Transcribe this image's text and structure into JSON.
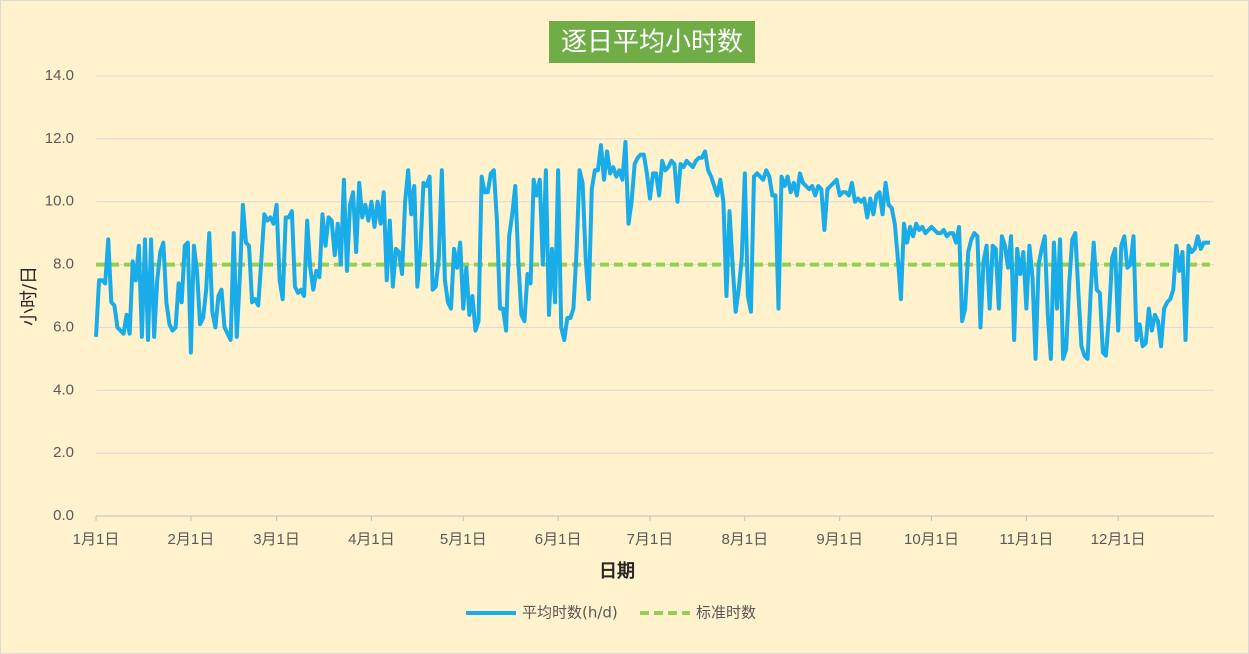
{
  "chart_data": {
    "type": "line",
    "title": "逐日平均小时数",
    "xlabel": "日期",
    "ylabel": "小时/日",
    "x": [
      0,
      1,
      2,
      3,
      4,
      5,
      6,
      7,
      8,
      9,
      10,
      11,
      12,
      13,
      14,
      15,
      16,
      17,
      18,
      19,
      20,
      21,
      22,
      23,
      24,
      25,
      26,
      27,
      28,
      29,
      30,
      31,
      32,
      33,
      34,
      35,
      36,
      37,
      38,
      39,
      40,
      41,
      42,
      43,
      44,
      45,
      46,
      47,
      48,
      49,
      50,
      51,
      52,
      53,
      54,
      55,
      56,
      57,
      58,
      59,
      60,
      61,
      62,
      63,
      64,
      65,
      66,
      67,
      68,
      69,
      70,
      71,
      72,
      73,
      74,
      75,
      76,
      77,
      78,
      79,
      80,
      81,
      82,
      83,
      84,
      85,
      86,
      87,
      88,
      89,
      90,
      91,
      92,
      93,
      94,
      95,
      96,
      97,
      98,
      99,
      100,
      101,
      102,
      103,
      104,
      105,
      106,
      107,
      108,
      109,
      110,
      111,
      112,
      113,
      114,
      115,
      116,
      117,
      118,
      119,
      120,
      121,
      122,
      123,
      124,
      125,
      126,
      127,
      128,
      129,
      130,
      131,
      132,
      133,
      134,
      135,
      136,
      137,
      138,
      139,
      140,
      141,
      142,
      143,
      144,
      145,
      146,
      147,
      148,
      149,
      150,
      151,
      152,
      153,
      154,
      155,
      156,
      157,
      158,
      159,
      160,
      161,
      162,
      163,
      164,
      165,
      166,
      167,
      168,
      169,
      170,
      171,
      172,
      173,
      174,
      175,
      176,
      177,
      178,
      179,
      180,
      181,
      182,
      183,
      184,
      185,
      186,
      187,
      188,
      189,
      190,
      191,
      192,
      193,
      194,
      195,
      196,
      197,
      198,
      199,
      200,
      201,
      202,
      203,
      204,
      205,
      206,
      207,
      208,
      209,
      210,
      211,
      212,
      213,
      214,
      215,
      216,
      217,
      218,
      219,
      220,
      221,
      222,
      223,
      224,
      225,
      226,
      227,
      228,
      229,
      230,
      231,
      232,
      233,
      234,
      235,
      236,
      237,
      238,
      239,
      240,
      241,
      242,
      243,
      244,
      245,
      246,
      247,
      248,
      249,
      250,
      251,
      252,
      253,
      254,
      255,
      256,
      257,
      258,
      259,
      260,
      261,
      262,
      263,
      264,
      265,
      266,
      267,
      268,
      269,
      270,
      271,
      272,
      273,
      274,
      275,
      276,
      277,
      278,
      279,
      280,
      281,
      282,
      283,
      284,
      285,
      286,
      287,
      288,
      289,
      290,
      291,
      292,
      293,
      294,
      295,
      296,
      297,
      298,
      299,
      300,
      301,
      302,
      303,
      304,
      305,
      306,
      307,
      308,
      309,
      310,
      311,
      312,
      313,
      314,
      315,
      316,
      317,
      318,
      319,
      320,
      321,
      322,
      323,
      324,
      325,
      326,
      327,
      328,
      329,
      330,
      331,
      332,
      333,
      334,
      335,
      336,
      337,
      338,
      339,
      340,
      341,
      342,
      343,
      344,
      345,
      346,
      347,
      348,
      349,
      350,
      351,
      352,
      353,
      354,
      355,
      356,
      357,
      358,
      359,
      360,
      361,
      362,
      363,
      364
    ],
    "series": [
      {
        "name": "平均时数(h/d)",
        "color": "#1AACE8",
        "values": [
          5.7,
          7.5,
          7.5,
          7.4,
          8.8,
          6.8,
          6.7,
          6.0,
          5.9,
          5.8,
          6.4,
          5.8,
          8.1,
          7.5,
          8.6,
          5.7,
          8.8,
          5.6,
          8.8,
          5.7,
          7.5,
          8.4,
          8.7,
          6.8,
          6.1,
          5.9,
          6.0,
          7.4,
          6.8,
          8.6,
          8.7,
          5.2,
          8.6,
          7.8,
          6.1,
          6.3,
          7.2,
          9.0,
          6.5,
          6.0,
          7.0,
          7.2,
          6.0,
          5.8,
          5.6,
          9.0,
          5.7,
          7.6,
          9.9,
          8.7,
          8.6,
          6.8,
          6.9,
          6.7,
          8.1,
          9.6,
          9.4,
          9.5,
          9.3,
          9.9,
          7.5,
          6.9,
          9.5,
          9.5,
          9.7,
          7.3,
          7.1,
          7.2,
          7.0,
          9.4,
          7.9,
          7.2,
          7.8,
          7.6,
          9.6,
          8.6,
          9.5,
          9.4,
          8.3,
          9.3,
          8.0,
          10.7,
          7.8,
          9.9,
          10.3,
          8.4,
          10.6,
          9.5,
          9.9,
          9.4,
          10.0,
          9.2,
          10.0,
          9.3,
          10.3,
          7.5,
          9.4,
          7.3,
          8.5,
          8.4,
          7.7,
          10.0,
          11.0,
          9.6,
          10.5,
          7.3,
          8.5,
          10.6,
          10.5,
          10.8,
          7.2,
          7.3,
          8.2,
          11.0,
          7.5,
          6.8,
          6.6,
          8.5,
          7.9,
          8.7,
          6.6,
          7.9,
          6.4,
          7.0,
          5.9,
          6.2,
          10.8,
          10.3,
          10.3,
          10.9,
          11.0,
          9.4,
          6.6,
          6.6,
          5.9,
          8.9,
          9.6,
          10.5,
          8.1,
          6.4,
          6.2,
          7.7,
          7.4,
          10.7,
          10.2,
          10.7,
          8.0,
          11.0,
          6.4,
          8.5,
          6.8,
          11.0,
          6.0,
          5.6,
          6.3,
          6.3,
          6.6,
          8.4,
          11.0,
          10.6,
          8.2,
          6.9,
          10.4,
          11.0,
          11.0,
          11.8,
          10.7,
          11.6,
          10.9,
          11.1,
          10.8,
          11.0,
          10.7,
          11.9,
          9.3,
          10.0,
          11.2,
          11.4,
          11.5,
          11.5,
          10.9,
          10.1,
          10.9,
          10.9,
          10.2,
          11.3,
          11.0,
          11.1,
          11.3,
          11.2,
          10.0,
          11.2,
          11.1,
          11.3,
          11.2,
          11.1,
          11.3,
          11.4,
          11.4,
          11.6,
          11.0,
          10.8,
          10.5,
          10.2,
          10.7,
          10.0,
          7.0,
          9.7,
          8.0,
          6.5,
          7.2,
          8.2,
          10.9,
          7.0,
          6.5,
          10.8,
          10.9,
          10.8,
          10.7,
          11.0,
          10.8,
          10.2,
          10.2,
          6.6,
          10.8,
          10.5,
          10.8,
          10.3,
          10.6,
          10.2,
          10.9,
          10.6,
          10.5,
          10.4,
          10.5,
          10.2,
          10.5,
          10.4,
          9.1,
          10.4,
          10.5,
          10.6,
          10.7,
          10.2,
          10.3,
          10.3,
          10.2,
          10.6,
          10.0,
          10.1,
          10.0,
          10.1,
          9.5,
          10.1,
          9.6,
          10.2,
          10.3,
          9.6,
          10.6,
          9.9,
          9.8,
          9.3,
          8.2,
          6.9,
          9.3,
          8.7,
          9.2,
          8.9,
          9.3,
          9.1,
          9.2,
          9.0,
          9.1,
          9.2,
          9.1,
          9.0,
          9.0,
          9.1,
          8.9,
          9.0,
          9.0,
          8.7,
          9.2,
          6.2,
          6.6,
          8.4,
          8.8,
          9.0,
          8.9,
          6.0,
          8.1,
          8.6,
          6.6,
          8.6,
          8.5,
          6.6,
          8.9,
          8.6,
          7.9,
          8.9,
          5.6,
          8.5,
          7.7,
          8.4,
          6.6,
          8.6,
          7.6,
          5.0,
          8.0,
          8.5,
          8.9,
          6.4,
          5.0,
          8.7,
          6.6,
          8.8,
          5.0,
          5.3,
          7.4,
          8.8,
          9.0,
          7.1,
          5.4,
          5.1,
          5.0,
          7.1,
          8.7,
          7.2,
          7.1,
          5.2,
          5.1,
          6.4,
          8.2,
          8.5,
          5.9,
          8.6,
          8.9,
          7.9,
          8.0,
          8.9,
          5.6,
          6.1,
          5.4,
          5.5,
          6.6,
          5.9,
          6.4,
          6.2,
          5.4,
          6.6,
          6.8,
          6.9,
          7.2,
          8.6,
          7.8,
          8.4,
          5.6,
          8.6,
          8.4,
          8.5,
          8.9,
          8.5,
          8.7,
          8.7,
          8.7
        ]
      }
    ],
    "reference": {
      "name": "标准时数",
      "color": "#92D050",
      "value": 8
    },
    "xlim": [
      0,
      364
    ],
    "xticks": [
      {
        "value": 0,
        "label": "1月1日"
      },
      {
        "value": 31,
        "label": "2月1日"
      },
      {
        "value": 59,
        "label": "3月1日"
      },
      {
        "value": 90,
        "label": "4月1日"
      },
      {
        "value": 120,
        "label": "5月1日"
      },
      {
        "value": 151,
        "label": "6月1日"
      },
      {
        "value": 181,
        "label": "7月1日"
      },
      {
        "value": 212,
        "label": "8月1日"
      },
      {
        "value": 243,
        "label": "9月1日"
      },
      {
        "value": 273,
        "label": "10月1日"
      },
      {
        "value": 304,
        "label": "11月1日"
      },
      {
        "value": 334,
        "label": "12月1日"
      }
    ],
    "ylim": [
      0,
      14
    ],
    "yticks": [
      {
        "value": 0,
        "label": "0.0"
      },
      {
        "value": 2,
        "label": "2.0"
      },
      {
        "value": 4,
        "label": "4.0"
      },
      {
        "value": 6,
        "label": "6.0"
      },
      {
        "value": 8,
        "label": "8.0"
      },
      {
        "value": 10,
        "label": "10.0"
      },
      {
        "value": 12,
        "label": "12.0"
      },
      {
        "value": 14,
        "label": "14.0"
      }
    ],
    "grid": true,
    "legend": "bottom"
  }
}
